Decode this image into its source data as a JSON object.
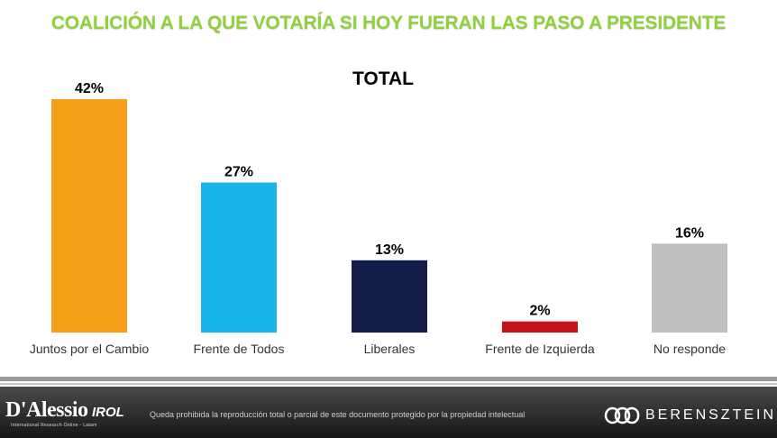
{
  "header": {
    "title": "COALICIÓN A LA QUE VOTARÍA SI HOY FUERAN LAS PASO A PRESIDENTE"
  },
  "chart_data": {
    "type": "bar",
    "title": "TOTAL",
    "categories": [
      "Juntos por el Cambio",
      "Frente de Todos",
      "Liberales",
      "Frente de Izquierda",
      "No responde"
    ],
    "values": [
      42,
      27,
      13,
      2,
      16
    ],
    "value_labels": [
      "42%",
      "27%",
      "13%",
      "2%",
      "16%"
    ],
    "colors": [
      "#f6a01a",
      "#18b4ea",
      "#141c4a",
      "#c4111a",
      "#bfbfbf"
    ],
    "unit": "%",
    "ylim": [
      0,
      42
    ],
    "grid": false,
    "legend": "none"
  },
  "footer": {
    "brand_left": "D'Alessio",
    "brand_left_suffix": "IROL",
    "brand_left_sub": "International Research Online - Latam",
    "disclaimer": "Queda prohibida la reproducción total o parcial de este documento protegido por la propiedad intelectual",
    "brand_right": "BERENSZTEIN"
  }
}
